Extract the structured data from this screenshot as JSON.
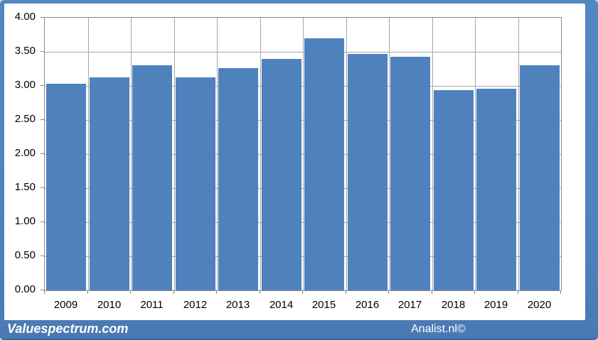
{
  "footer": {
    "brand_left": "Valuespectrum.com",
    "brand_right": "Analist.nl©"
  },
  "chart_data": {
    "type": "bar",
    "title": "",
    "xlabel": "",
    "ylabel": "",
    "categories": [
      "2009",
      "2010",
      "2011",
      "2012",
      "2013",
      "2014",
      "2015",
      "2016",
      "2017",
      "2018",
      "2019",
      "2020"
    ],
    "values": [
      3.03,
      3.12,
      3.3,
      3.12,
      3.26,
      3.4,
      3.7,
      3.47,
      3.43,
      2.94,
      2.96,
      3.3
    ],
    "ylim": [
      0,
      4
    ],
    "ytick_step": 0.5,
    "ytick_labels": [
      "4.00",
      "3.50",
      "3.00",
      "2.50",
      "2.00",
      "1.50",
      "1.00",
      "0.50",
      "0.00"
    ],
    "grid": true,
    "legend": false,
    "legend_position": "none",
    "colors": {
      "bar": "#4f81bd",
      "frame": "#4f81bd",
      "gridline": "#a6a6a6",
      "axis": "#898989",
      "plot_background": "#ffffff",
      "tick_text": "#000000",
      "brand_text": "#ffffff"
    }
  }
}
